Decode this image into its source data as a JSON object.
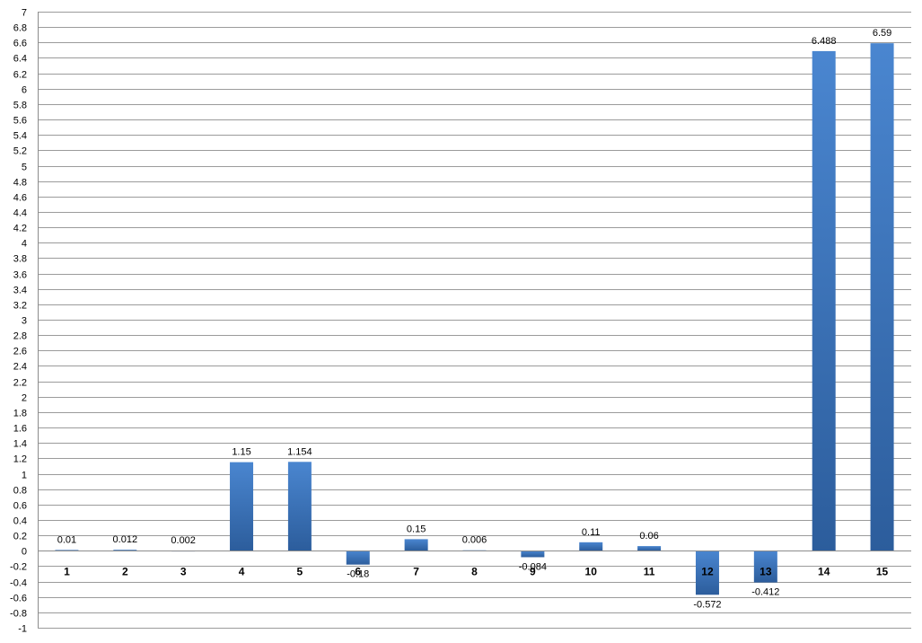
{
  "chart_data": {
    "type": "bar",
    "categories": [
      "1",
      "2",
      "3",
      "4",
      "5",
      "6",
      "7",
      "8",
      "9",
      "10",
      "11",
      "12",
      "13",
      "14",
      "15"
    ],
    "values": [
      0.01,
      0.012,
      0.002,
      1.15,
      1.154,
      -0.18,
      0.15,
      0.006,
      -0.084,
      0.11,
      0.06,
      -0.572,
      -0.412,
      6.488,
      6.59
    ],
    "data_labels": [
      "0.01",
      "0.012",
      "0.002",
      "1.15",
      "1.154",
      "-0.18",
      "0.15",
      "0.006",
      "-0.084",
      "0.11",
      "0.06",
      "-0.572",
      "-0.412",
      "6.488",
      "6.59"
    ],
    "y_ticks": [
      "-1",
      "-0.8",
      "-0.6",
      "-0.4",
      "-0.2",
      "0",
      "0.2",
      "0.4",
      "0.6",
      "0.8",
      "1",
      "1.2",
      "1.4",
      "1.6",
      "1.8",
      "2",
      "2.2",
      "2.4",
      "2.6",
      "2.8",
      "3",
      "3.2",
      "3.4",
      "3.6",
      "3.8",
      "4",
      "4.2",
      "4.4",
      "4.6",
      "4.8",
      "5",
      "5.2",
      "5.4",
      "5.6",
      "5.8",
      "6",
      "6.2",
      "6.4",
      "6.6",
      "6.8",
      "7"
    ],
    "ylim": [
      -1,
      7
    ],
    "grid": true,
    "legend": "none",
    "title": "",
    "xlabel": "",
    "ylabel": "",
    "colors": {
      "bar_light": "#4a86d0",
      "bar_dark": "#2c5d9c",
      "grid": "#9b9b9b",
      "axis": "#8c8c8c"
    }
  }
}
